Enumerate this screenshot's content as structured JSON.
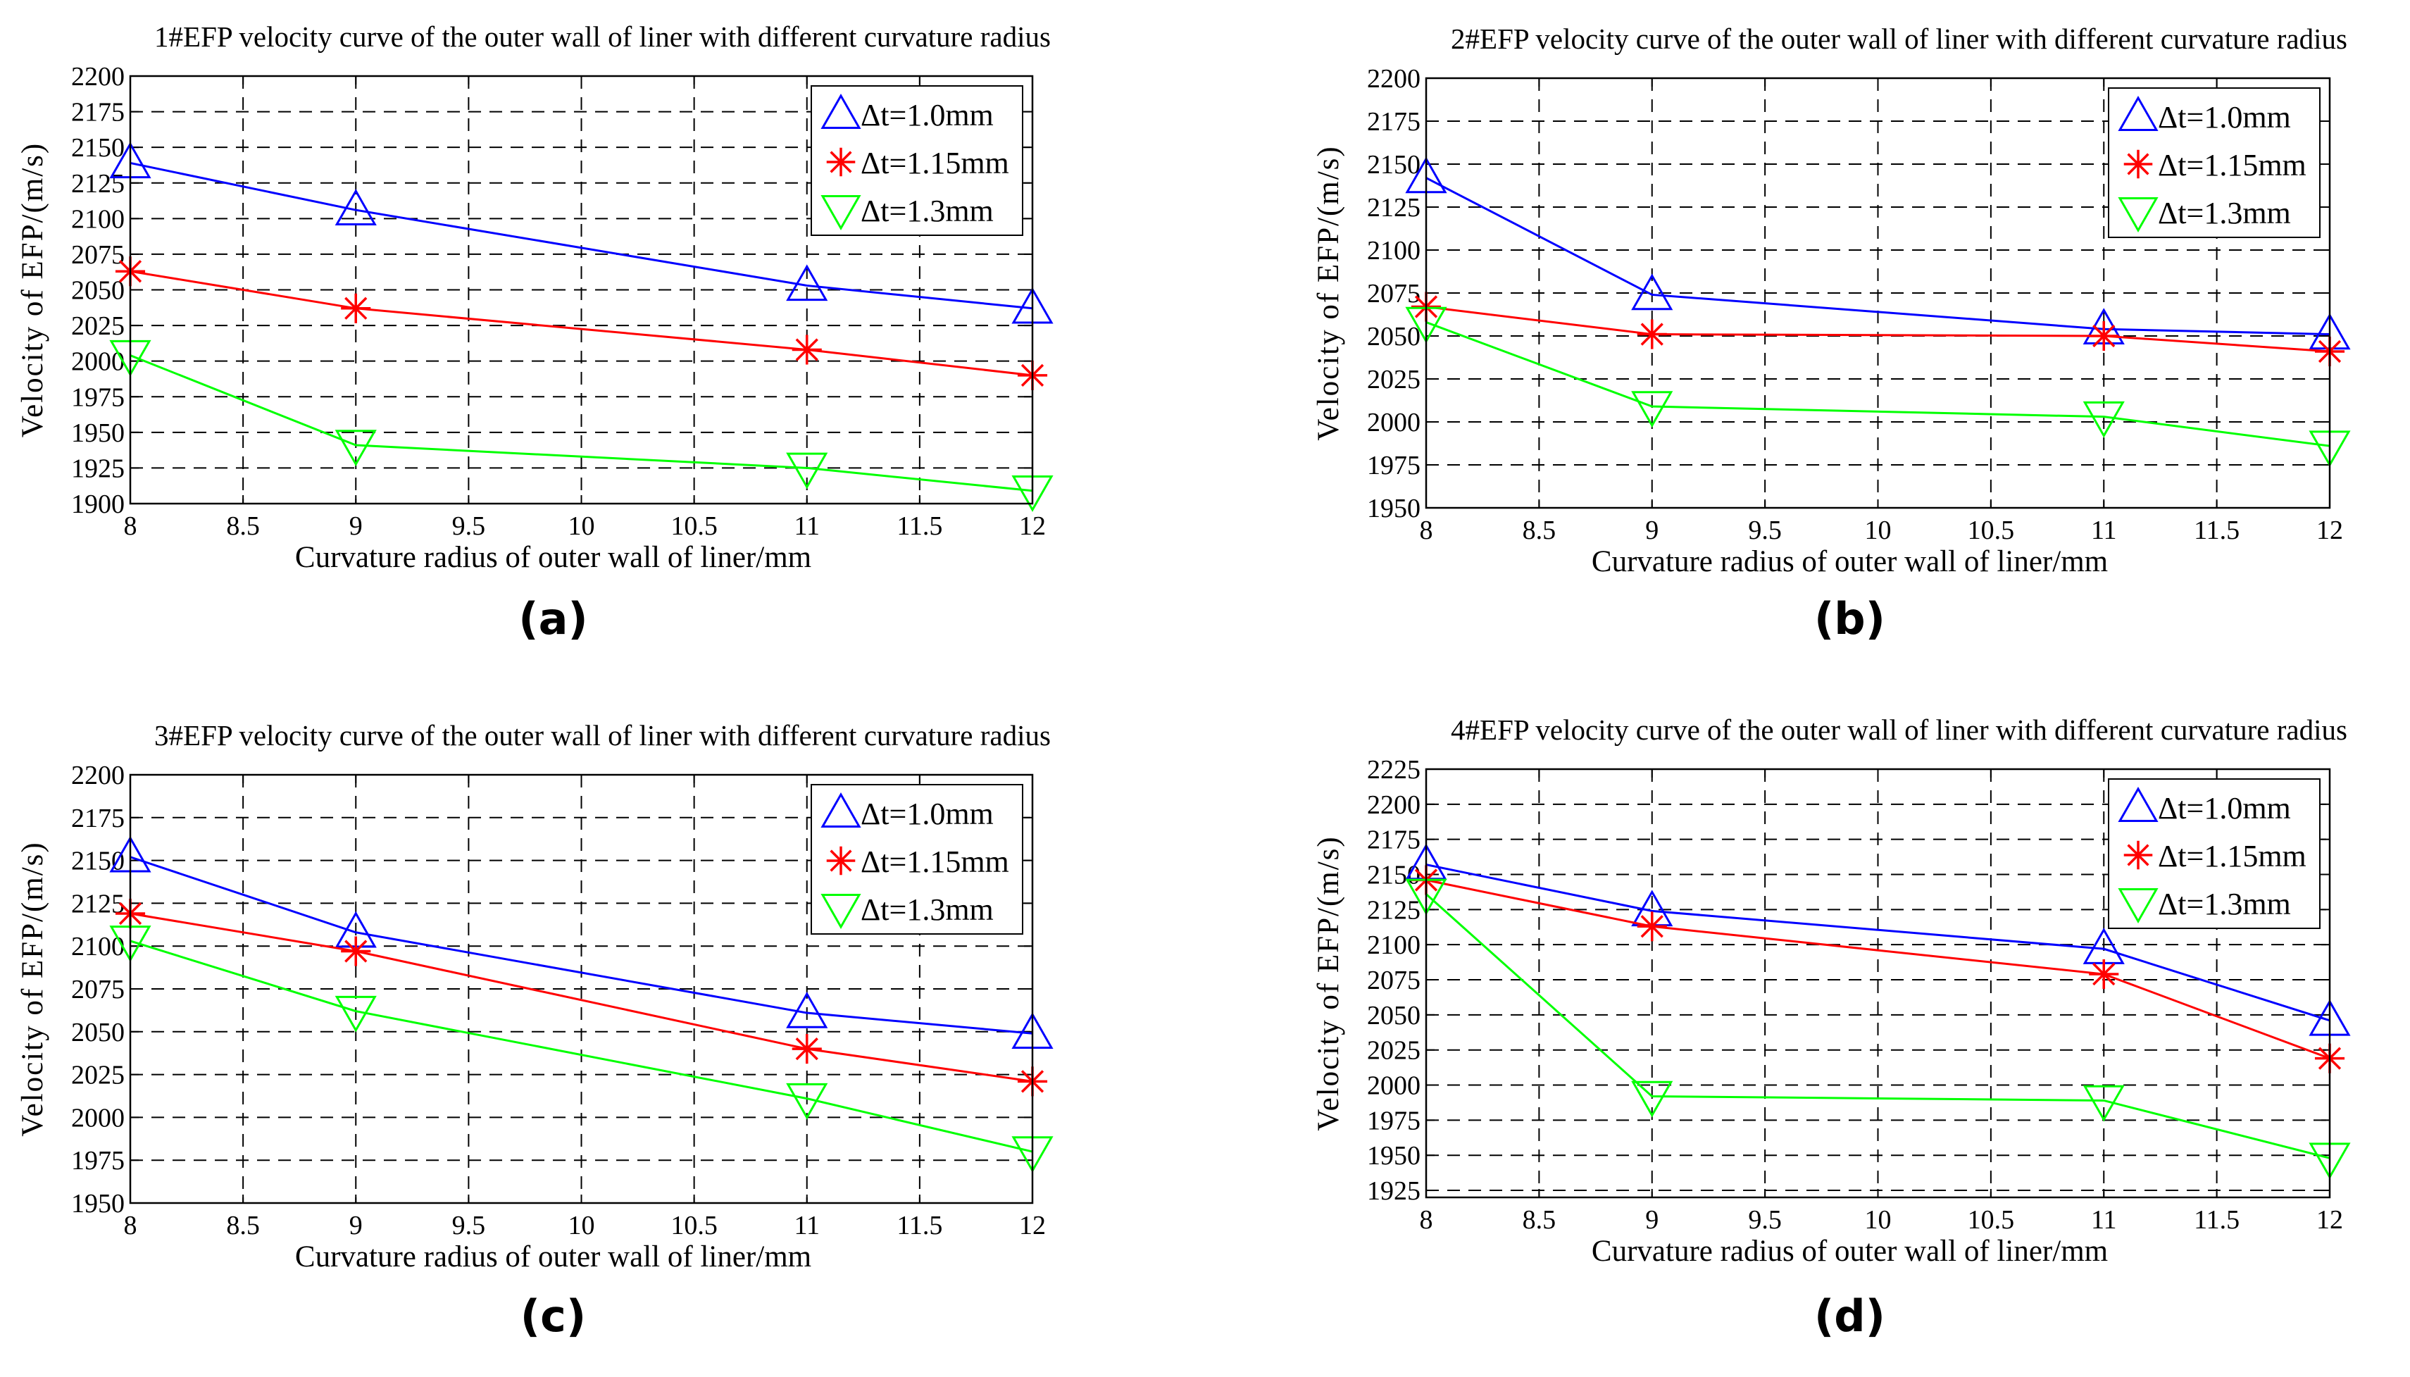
{
  "chart_data": [
    {
      "type": "line",
      "title": "1#EFP velocity curve of the outer wall of liner with different curvature radius",
      "xlabel": "Curvature radius of outer wall of liner/mm",
      "ylabel": "Velocity of EFP/(m/s)",
      "caption": "(a)",
      "xlim": [
        8,
        12
      ],
      "ylim": [
        1900,
        2200
      ],
      "xticks": [
        8,
        8.5,
        9,
        9.5,
        10,
        10.5,
        11,
        11.5,
        12
      ],
      "yticks": [
        1900,
        1925,
        1950,
        1975,
        2000,
        2025,
        2050,
        2075,
        2100,
        2125,
        2150,
        2175,
        2200
      ],
      "grid": true,
      "legend_position": "top-right",
      "x": [
        8,
        9,
        11,
        12
      ],
      "series": [
        {
          "name": "Δt=1.0mm",
          "values": [
            2139,
            2106,
            2053,
            2037
          ],
          "color": "#0000ff",
          "marker": "triangle-up"
        },
        {
          "name": "Δt=1.15mm",
          "values": [
            2063,
            2037,
            2008,
            1990
          ],
          "color": "#ff0000",
          "marker": "asterisk"
        },
        {
          "name": "Δt=1.3mm",
          "values": [
            2004,
            1941,
            1925,
            1909
          ],
          "color": "#00ff00",
          "marker": "triangle-down"
        }
      ]
    },
    {
      "type": "line",
      "title": "2#EFP velocity curve of the outer wall of liner with different curvature radius",
      "xlabel": "Curvature radius of outer wall of liner/mm",
      "ylabel": "Velocity of EFP/(m/s)",
      "caption": "(b)",
      "xlim": [
        8,
        12
      ],
      "ylim": [
        1950,
        2200
      ],
      "xticks": [
        8,
        8.5,
        9,
        9.5,
        10,
        10.5,
        11,
        11.5,
        12
      ],
      "yticks": [
        1950,
        1975,
        2000,
        2025,
        2050,
        2075,
        2100,
        2125,
        2150,
        2175,
        2200
      ],
      "grid": true,
      "legend_position": "top-right",
      "x": [
        8,
        9,
        11,
        12
      ],
      "series": [
        {
          "name": "Δt=1.0mm",
          "values": [
            2142,
            2074,
            2054,
            2051
          ],
          "color": "#0000ff",
          "marker": "triangle-up"
        },
        {
          "name": "Δt=1.15mm",
          "values": [
            2067,
            2051,
            2050,
            2041
          ],
          "color": "#ff0000",
          "marker": "asterisk"
        },
        {
          "name": "Δt=1.3mm",
          "values": [
            2058,
            2009,
            2003,
            1986
          ],
          "color": "#00ff00",
          "marker": "triangle-down"
        }
      ]
    },
    {
      "type": "line",
      "title": "3#EFP velocity curve of the outer wall of liner with different curvature radius",
      "xlabel": "Curvature radius of outer wall of liner/mm",
      "ylabel": "Velocity of EFP/(m/s)",
      "caption": "(c)",
      "xlim": [
        8,
        12
      ],
      "ylim": [
        1950,
        2200
      ],
      "xticks": [
        8,
        8.5,
        9,
        9.5,
        10,
        10.5,
        11,
        11.5,
        12
      ],
      "yticks": [
        1950,
        1975,
        2000,
        2025,
        2050,
        2075,
        2100,
        2125,
        2150,
        2175,
        2200
      ],
      "grid": true,
      "legend_position": "top-right",
      "x": [
        8,
        9,
        11,
        12
      ],
      "series": [
        {
          "name": "Δt=1.0mm",
          "values": [
            2152,
            2108,
            2061,
            2049
          ],
          "color": "#0000ff",
          "marker": "triangle-up"
        },
        {
          "name": "Δt=1.15mm",
          "values": [
            2119,
            2097,
            2040,
            2021
          ],
          "color": "#ff0000",
          "marker": "asterisk"
        },
        {
          "name": "Δt=1.3mm",
          "values": [
            2103,
            2062,
            2011,
            1980
          ],
          "color": "#00ff00",
          "marker": "triangle-down"
        }
      ]
    },
    {
      "type": "line",
      "title": "4#EFP velocity curve of the outer wall of liner with different curvature radius",
      "xlabel": "Curvature radius of outer wall of liner/mm",
      "ylabel": "Velocity of EFP/(m/s)",
      "caption": "(d)",
      "xlim": [
        8,
        12
      ],
      "ylim": [
        1920,
        2225
      ],
      "xticks": [
        8,
        8.5,
        9,
        9.5,
        10,
        10.5,
        11,
        11.5,
        12
      ],
      "yticks": [
        1925,
        1950,
        1975,
        2000,
        2025,
        2050,
        2075,
        2100,
        2125,
        2150,
        2175,
        2200,
        2225
      ],
      "grid": true,
      "legend_position": "top-right",
      "x": [
        8,
        9,
        11,
        12
      ],
      "series": [
        {
          "name": "Δt=1.0mm",
          "values": [
            2157,
            2124,
            2097,
            2046
          ],
          "color": "#0000ff",
          "marker": "triangle-up"
        },
        {
          "name": "Δt=1.15mm",
          "values": [
            2146,
            2113,
            2079,
            2019
          ],
          "color": "#ff0000",
          "marker": "asterisk"
        },
        {
          "name": "Δt=1.3mm",
          "values": [
            2136,
            1992,
            1989,
            1948
          ],
          "color": "#00ff00",
          "marker": "triangle-down"
        }
      ]
    }
  ]
}
